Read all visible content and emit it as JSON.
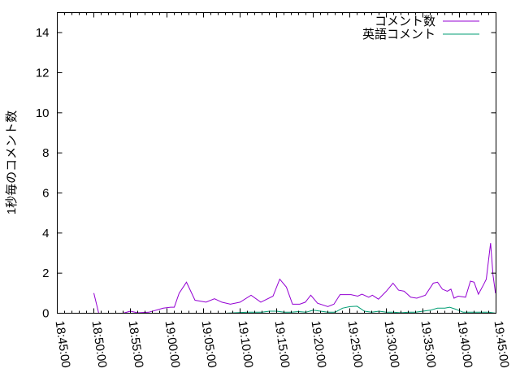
{
  "chart_data": {
    "type": "line",
    "title": "",
    "xlabel": "",
    "ylabel": "1秒毎のコメント数",
    "xlim": [
      "18:45:00",
      "19:45:00"
    ],
    "ylim": [
      0,
      15
    ],
    "x_ticks": [
      "18:45:00",
      "18:50:00",
      "18:55:00",
      "19:00:00",
      "19:05:00",
      "19:10:00",
      "19:15:00",
      "19:20:00",
      "19:25:00",
      "19:30:00",
      "19:35:00",
      "19:40:00",
      "19:45:00"
    ],
    "y_ticks": [
      0,
      2,
      4,
      6,
      8,
      10,
      12,
      14
    ],
    "grid": false,
    "legend_position": "top-right",
    "series": [
      {
        "name": "コメント数",
        "color": "#9400d3",
        "points": [
          [
            "18:50:00",
            1.0
          ],
          [
            "18:50:40",
            0.0
          ],
          [
            "18:54:00",
            0.0
          ],
          [
            "18:55:00",
            0.1
          ],
          [
            "18:56:00",
            0.02
          ],
          [
            "18:57:30",
            0.05
          ],
          [
            "18:59:30",
            0.25
          ],
          [
            "19:00:30",
            0.3
          ],
          [
            "19:01:00",
            0.3
          ],
          [
            "19:01:40",
            1.0
          ],
          [
            "19:02:40",
            1.55
          ],
          [
            "19:03:50",
            0.65
          ],
          [
            "19:05:20",
            0.55
          ],
          [
            "19:06:30",
            0.72
          ],
          [
            "19:07:30",
            0.55
          ],
          [
            "19:08:40",
            0.45
          ],
          [
            "19:10:00",
            0.55
          ],
          [
            "19:11:30",
            0.9
          ],
          [
            "19:12:50",
            0.55
          ],
          [
            "19:14:30",
            0.85
          ],
          [
            "19:15:25",
            1.7
          ],
          [
            "19:16:20",
            1.3
          ],
          [
            "19:17:10",
            0.45
          ],
          [
            "19:18:10",
            0.45
          ],
          [
            "19:18:55",
            0.55
          ],
          [
            "19:19:40",
            0.9
          ],
          [
            "19:20:35",
            0.5
          ],
          [
            "19:22:00",
            0.33
          ],
          [
            "19:22:50",
            0.45
          ],
          [
            "19:23:40",
            0.93
          ],
          [
            "19:25:10",
            0.93
          ],
          [
            "19:26:05",
            0.85
          ],
          [
            "19:26:40",
            0.95
          ],
          [
            "19:27:35",
            0.8
          ],
          [
            "19:28:05",
            0.9
          ],
          [
            "19:28:55",
            0.7
          ],
          [
            "19:30:00",
            1.1
          ],
          [
            "19:30:55",
            1.5
          ],
          [
            "19:31:40",
            1.15
          ],
          [
            "19:32:25",
            1.1
          ],
          [
            "19:33:20",
            0.8
          ],
          [
            "19:34:10",
            0.75
          ],
          [
            "19:35:20",
            0.9
          ],
          [
            "19:36:25",
            1.5
          ],
          [
            "19:37:00",
            1.55
          ],
          [
            "19:37:40",
            1.2
          ],
          [
            "19:38:20",
            1.1
          ],
          [
            "19:38:50",
            1.2
          ],
          [
            "19:39:15",
            0.75
          ],
          [
            "19:39:50",
            0.85
          ],
          [
            "19:40:50",
            0.8
          ],
          [
            "19:41:30",
            1.6
          ],
          [
            "19:42:00",
            1.55
          ],
          [
            "19:42:35",
            0.95
          ],
          [
            "19:43:20",
            1.45
          ],
          [
            "19:43:40",
            1.7
          ],
          [
            "19:44:15",
            3.5
          ],
          [
            "19:44:35",
            1.9
          ],
          [
            "19:44:55",
            1.0
          ]
        ]
      },
      {
        "name": "英語コメント",
        "color": "#009e73",
        "points": [
          [
            "19:08:00",
            0.0
          ],
          [
            "19:11:00",
            0.05
          ],
          [
            "19:13:00",
            0.05
          ],
          [
            "19:14:00",
            0.1
          ],
          [
            "19:15:00",
            0.1
          ],
          [
            "19:16:00",
            0.05
          ],
          [
            "19:17:00",
            0.05
          ],
          [
            "19:18:00",
            0.08
          ],
          [
            "19:19:00",
            0.05
          ],
          [
            "19:20:00",
            0.15
          ],
          [
            "19:21:00",
            0.1
          ],
          [
            "19:22:00",
            0.05
          ],
          [
            "19:23:00",
            0.05
          ],
          [
            "19:24:00",
            0.25
          ],
          [
            "19:25:00",
            0.33
          ],
          [
            "19:26:00",
            0.35
          ],
          [
            "19:27:00",
            0.1
          ],
          [
            "19:28:00",
            0.05
          ],
          [
            "19:29:00",
            0.1
          ],
          [
            "19:30:00",
            0.05
          ],
          [
            "19:31:00",
            0.05
          ],
          [
            "19:32:00",
            0.02
          ],
          [
            "19:33:00",
            0.05
          ],
          [
            "19:34:00",
            0.05
          ],
          [
            "19:35:00",
            0.1
          ],
          [
            "19:36:00",
            0.15
          ],
          [
            "19:37:00",
            0.25
          ],
          [
            "19:38:00",
            0.25
          ],
          [
            "19:38:40",
            0.3
          ],
          [
            "19:39:30",
            0.2
          ],
          [
            "19:40:30",
            0.05
          ],
          [
            "19:42:00",
            0.05
          ],
          [
            "19:43:00",
            0.05
          ],
          [
            "19:44:00",
            0.05
          ],
          [
            "19:45:00",
            0.0
          ]
        ]
      }
    ]
  }
}
